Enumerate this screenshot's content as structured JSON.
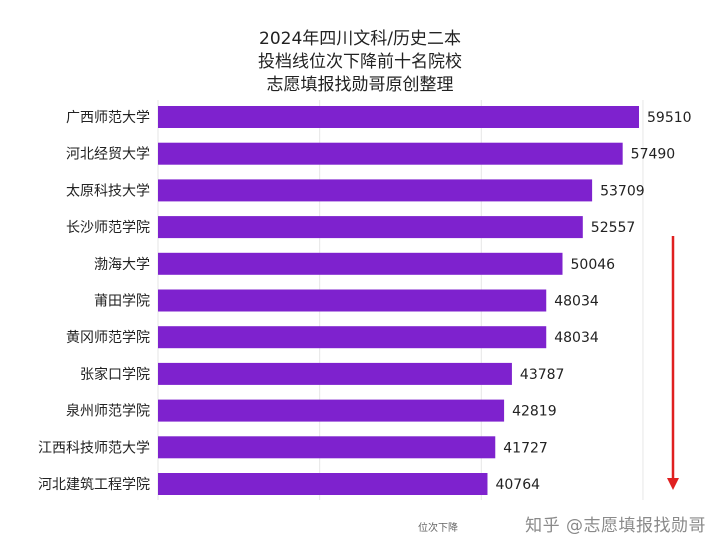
{
  "chart_data": {
    "type": "bar",
    "orientation": "horizontal",
    "title_lines": [
      "2024年四川文科/历史二本",
      "投档线位次下降前十名院校",
      "志愿填报找勋哥原创整理"
    ],
    "categories": [
      "广西师范大学",
      "河北经贸大学",
      "太原科技大学",
      "长沙师范学院",
      "渤海大学",
      "莆田学院",
      "黄冈师范学院",
      "张家口学院",
      "泉州师范学院",
      "江西科技师范大学",
      "河北建筑工程学院"
    ],
    "values": [
      59510,
      57490,
      53709,
      52557,
      50046,
      48034,
      48034,
      43787,
      42819,
      41727,
      40764
    ],
    "xlabel": "位次下降",
    "xlim": [
      0,
      60000
    ],
    "grid": true,
    "bar_color": "#7e22ce"
  },
  "watermark": "知乎 @志愿填报找勋哥",
  "arrow_color": "#e02020"
}
